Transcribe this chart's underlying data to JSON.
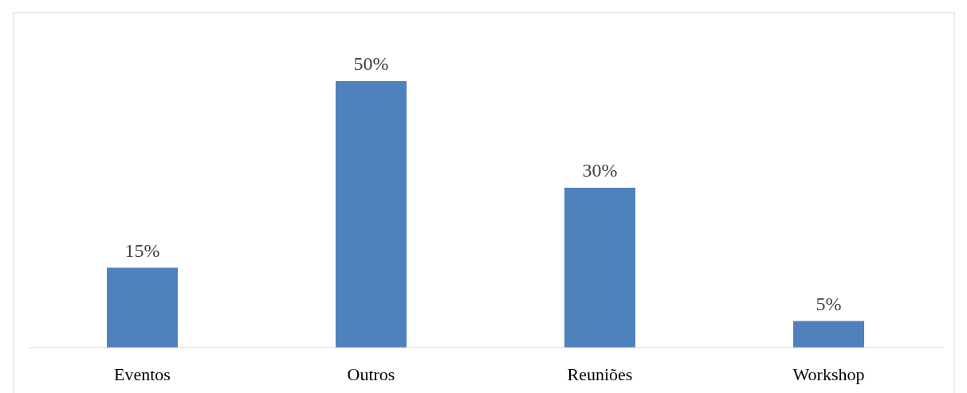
{
  "chart_data": {
    "type": "bar",
    "categories": [
      "Eventos",
      "Outros",
      "Reuniões",
      "Workshop"
    ],
    "values": [
      15,
      50,
      30,
      5
    ],
    "value_labels": [
      "15%",
      "50%",
      "30%",
      "5%"
    ],
    "color": "#4f81bd"
  }
}
